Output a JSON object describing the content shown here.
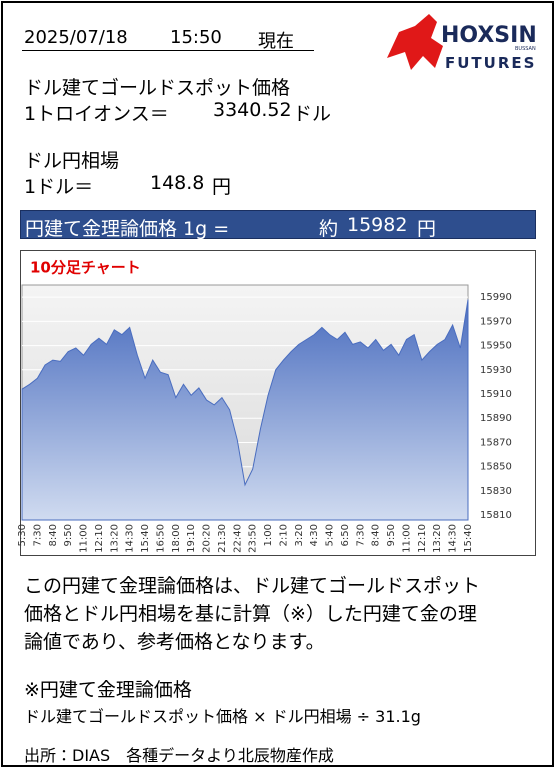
{
  "header": {
    "date": "2025/07/18",
    "time": "15:50",
    "now": "現在"
  },
  "logo": {
    "name": "HOXSIN",
    "sub": "BUSSAN",
    "futures": "FUTURES"
  },
  "gold": {
    "label": "ドル建てゴールドスポット価格",
    "unit_label": "1トロイオンス＝",
    "price": "3340.52",
    "currency": "ドル"
  },
  "fx": {
    "label": "ドル円相場",
    "unit_label": "1ドル＝",
    "rate": "148.8",
    "currency": "円"
  },
  "banner": {
    "label": "円建て金理論価格 1g =",
    "approx": "約",
    "price": "15982",
    "currency": "円"
  },
  "chart_data": {
    "type": "area",
    "title": "10分足チャート",
    "categories": [
      "5:30",
      null,
      "7:30",
      null,
      "8:40",
      null,
      "9:50",
      null,
      "11:00",
      null,
      "12:10",
      null,
      "13:20",
      null,
      "14:30",
      null,
      "15:40",
      null,
      "16:50",
      null,
      "18:00",
      null,
      "19:10",
      null,
      "20:20",
      null,
      "21:30",
      null,
      "22:40",
      null,
      "23:50",
      null,
      "1:00",
      null,
      "2:10",
      null,
      "3:20",
      null,
      "4:30",
      null,
      "5:40",
      null,
      "6:50",
      null,
      "7:30",
      null,
      "8:40",
      null,
      "9:50",
      null,
      "11:00",
      null,
      "12:10",
      null,
      "13:20",
      null,
      "14:30",
      null,
      "15:40"
    ],
    "values": [
      15914,
      15918,
      15923,
      15934,
      15938,
      15937,
      15945,
      15948,
      15942,
      15951,
      15956,
      15951,
      15963,
      15959,
      15965,
      15942,
      15923,
      15938,
      15928,
      15926,
      15907,
      15918,
      15909,
      15915,
      15905,
      15901,
      15907,
      15897,
      15872,
      15835,
      15848,
      15881,
      15909,
      15930,
      15938,
      15945,
      15951,
      15955,
      15959,
      15965,
      15959,
      15955,
      15961,
      15951,
      15953,
      15948,
      15955,
      15946,
      15951,
      15942,
      15955,
      15959,
      15938,
      15945,
      15951,
      15955,
      15967,
      15948,
      15988
    ],
    "color": "#4a6dbf",
    "ylim": [
      15806,
      16000
    ],
    "yticks": [
      15810,
      15830,
      15850,
      15870,
      15890,
      15910,
      15930,
      15950,
      15970,
      15990
    ],
    "grid": true
  },
  "description": {
    "lines": [
      "この円建て金理論価格は、ドル建てゴールドスポット",
      "価格とドル円相場を基に計算（※）した円建て金の理",
      "論値であり、参考価格となります。"
    ]
  },
  "note": {
    "title": "※円建て金理論価格",
    "formula": "ドル建てゴールドスポット価格 × ドル円相場 ÷ 31.1g"
  },
  "source": "出所：DIAS　各種データより北辰物産作成"
}
